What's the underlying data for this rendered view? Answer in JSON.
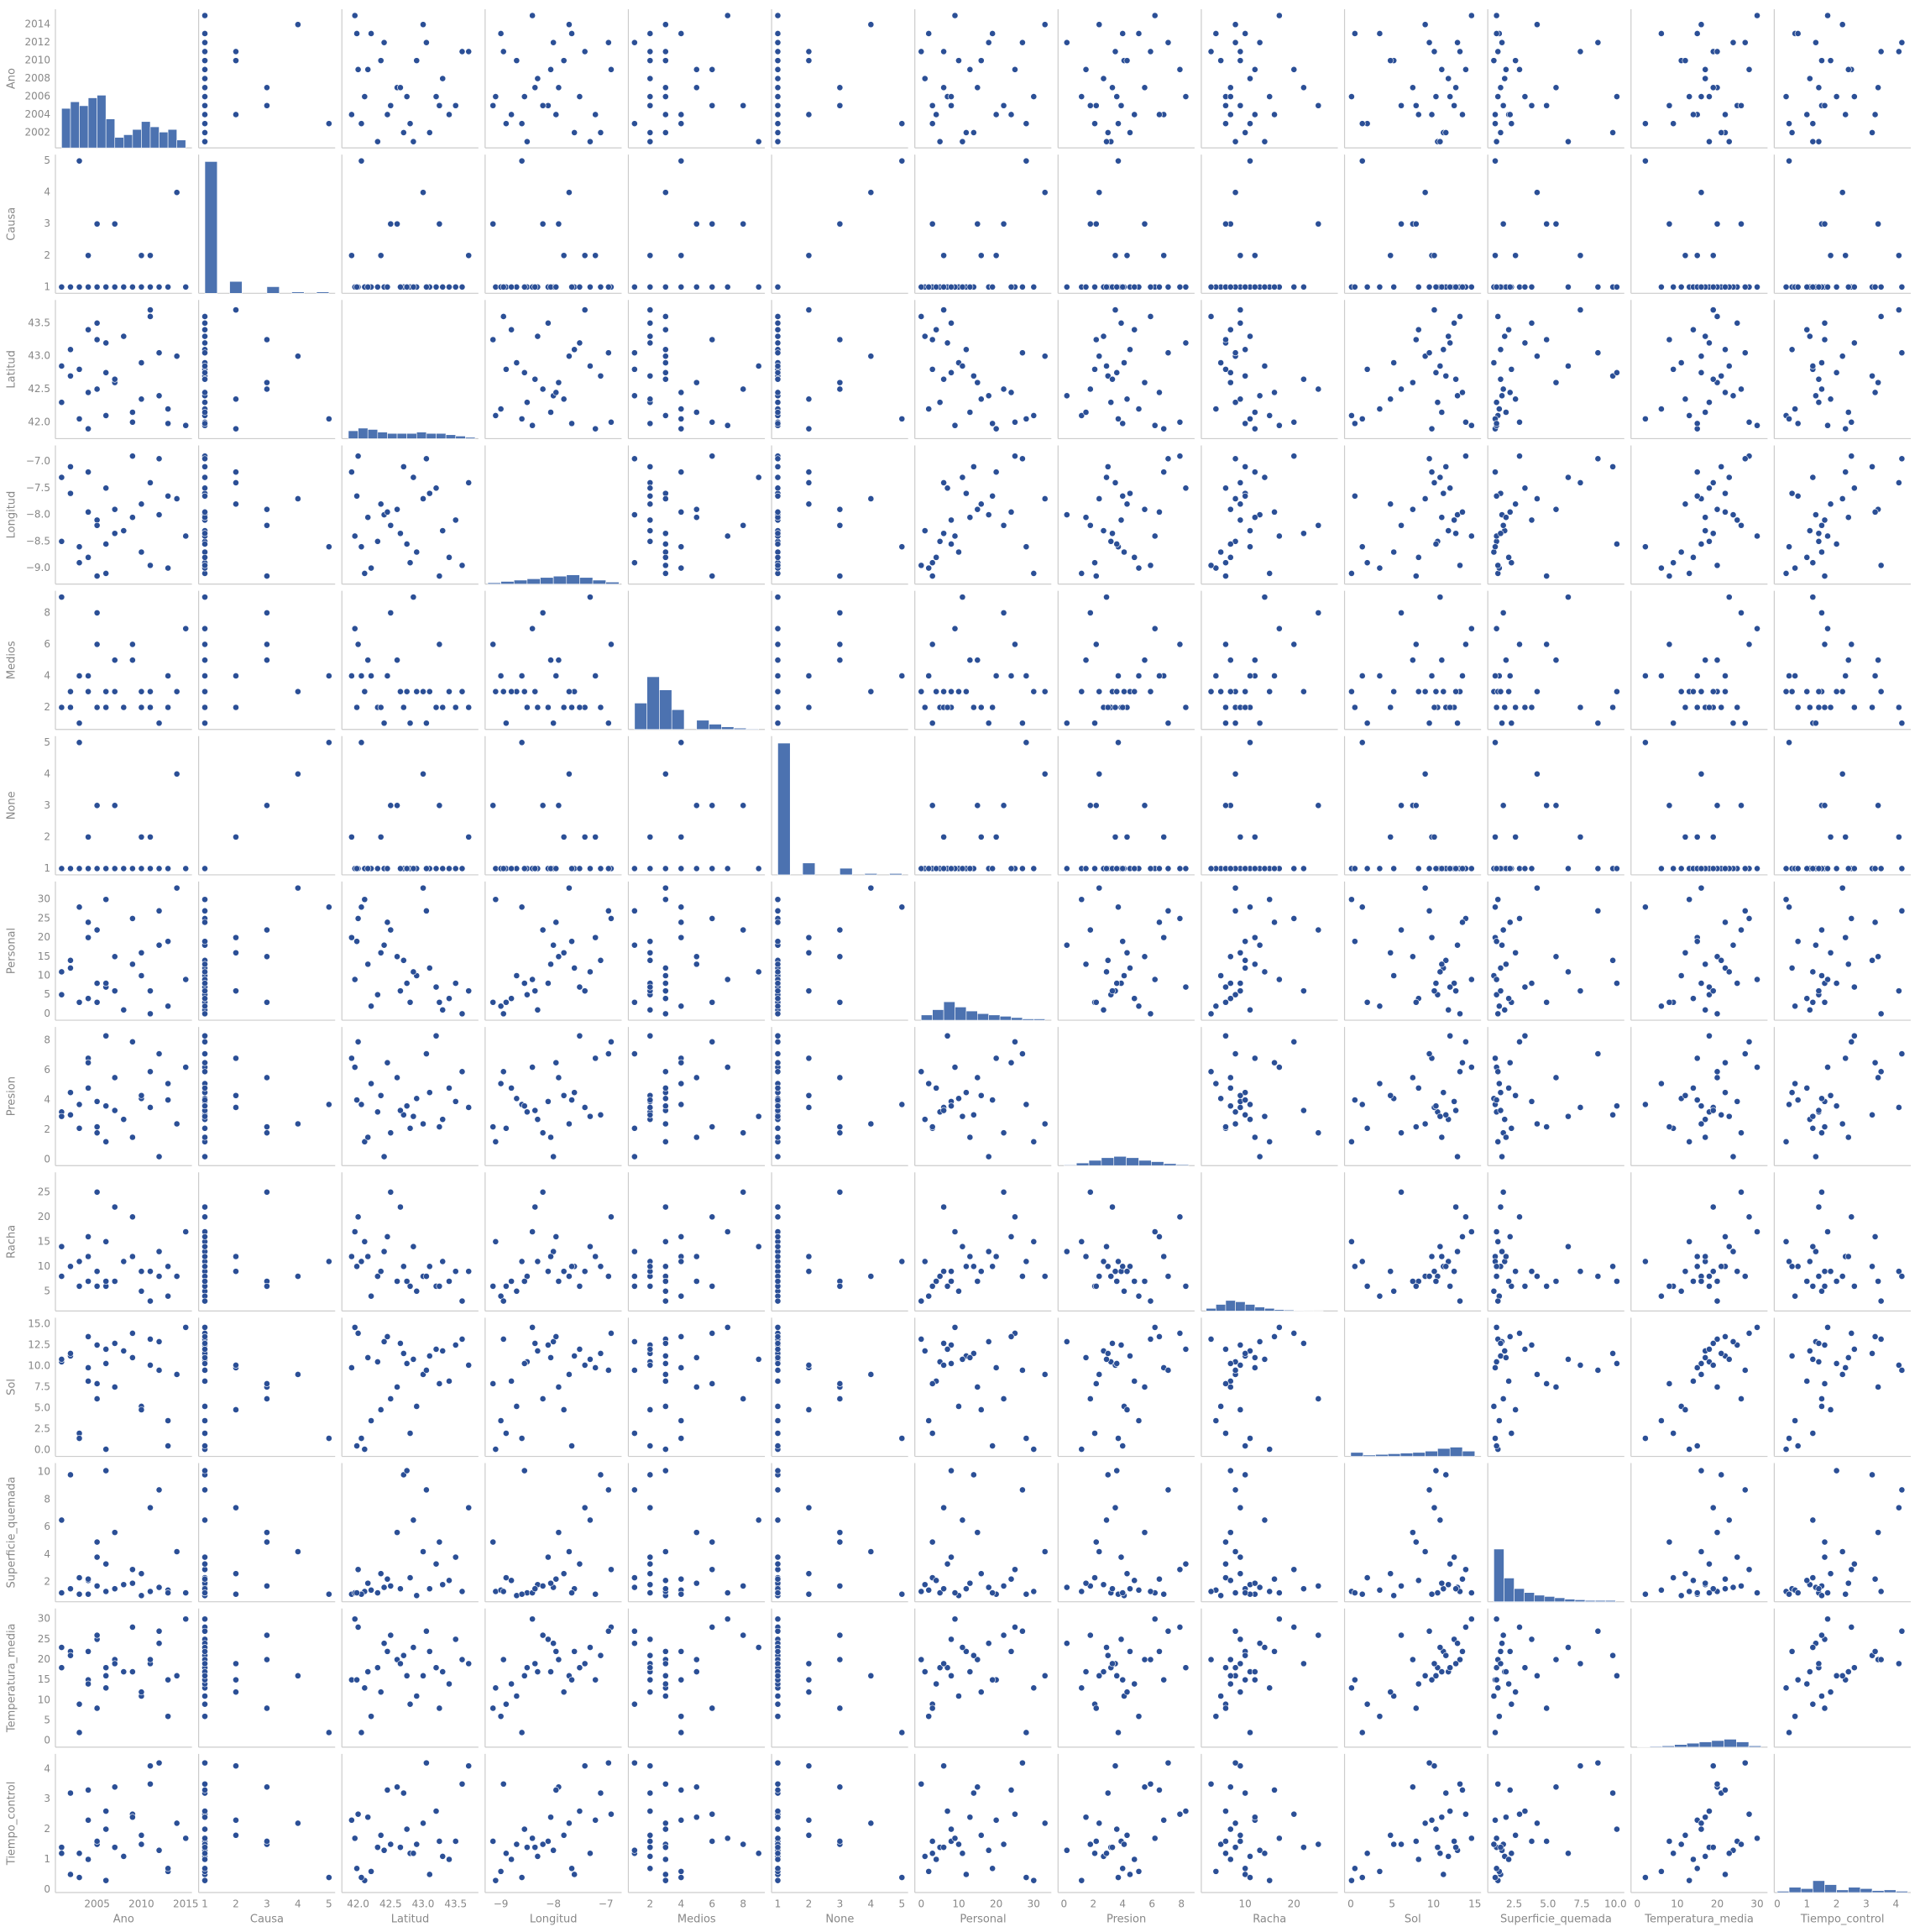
{
  "chart_data": {
    "type": "pairplot",
    "color": "#2b4f96",
    "hist_color": "#4c72b0",
    "variables": [
      {
        "name": "Ano",
        "lim": [
          2000.3,
          2015.7
        ],
        "xticks": [
          2005,
          2010,
          2015
        ],
        "yticks": [
          2002,
          2004,
          2006,
          2008,
          2010,
          2012,
          2014
        ],
        "values": [
          2001,
          2002,
          2003,
          2004,
          2005,
          2006,
          2007,
          2008,
          2009,
          2010,
          2011,
          2012,
          2013,
          2014,
          2015,
          2002,
          2004,
          2005,
          2006,
          2003,
          2001,
          2011,
          2010,
          2009,
          2012,
          2007,
          2013,
          2005,
          2004,
          2006
        ],
        "hist": {
          "bins": [
            2001,
            2002,
            2003,
            2004,
            2005,
            2006,
            2007,
            2008,
            2009,
            2010,
            2011,
            2012,
            2013,
            2014,
            2015
          ],
          "counts": [
            30,
            35,
            32,
            38,
            40,
            22,
            8,
            10,
            14,
            20,
            16,
            12,
            14,
            6
          ]
        }
      },
      {
        "name": "Causa",
        "lim": [
          0.8,
          5.2
        ],
        "xticks": [
          1,
          2,
          3,
          4,
          5
        ],
        "yticks": [
          1,
          2,
          3,
          4,
          5
        ],
        "values": [
          1,
          1,
          1,
          2,
          1,
          1,
          3,
          1,
          1,
          1,
          2,
          1,
          1,
          4,
          1,
          1,
          1,
          3,
          1,
          5,
          1,
          1,
          2,
          1,
          1,
          1,
          1,
          3,
          1,
          1
        ],
        "hist": {
          "bins": [
            1,
            1.4,
            1.8,
            2.2,
            2.6,
            3.0,
            3.4,
            3.8,
            4.2,
            4.6,
            5.0
          ],
          "counts": [
            100,
            0,
            9,
            0,
            0,
            5,
            0,
            1,
            0,
            1
          ]
        }
      },
      {
        "name": "Latitud",
        "lim": [
          41.75,
          43.85
        ],
        "xticks": [
          {
            "value": 42,
            "label": "42.0"
          },
          42.5,
          {
            "value": 43,
            "label": "43.0"
          },
          43.5
        ],
        "yticks": [
          {
            "value": 42,
            "label": "42.0"
          },
          42.5,
          {
            "value": 43,
            "label": "43.0"
          },
          43.5
        ],
        "values": [
          42.3,
          43.1,
          42.8,
          41.9,
          43.5,
          42.1,
          42.6,
          43.3,
          42.0,
          42.9,
          43.7,
          42.4,
          42.2,
          43.0,
          41.95,
          42.7,
          43.4,
          42.5,
          43.2,
          42.05,
          42.85,
          43.6,
          42.35,
          42.15,
          43.05,
          42.65,
          41.98,
          43.25,
          42.45,
          42.75
        ],
        "hist": {
          "bins": [
            41.85,
            42.0,
            42.15,
            42.3,
            42.45,
            42.6,
            42.75,
            42.9,
            43.05,
            43.2,
            43.35,
            43.5,
            43.65,
            43.8
          ],
          "counts": [
            6,
            8,
            7,
            5,
            4,
            4,
            4,
            5,
            4,
            4,
            3,
            2,
            1
          ]
        }
      },
      {
        "name": "Longitud",
        "lim": [
          -9.3,
          -6.7
        ],
        "xticks": [
          {
            "value": -9,
            "label": "−9"
          },
          {
            "value": -8,
            "label": "−8"
          },
          {
            "value": -7,
            "label": "−7"
          }
        ],
        "yticks": [
          {
            "value": -9,
            "label": "−9.0"
          },
          {
            "value": -8.5,
            "label": "−8.5"
          },
          {
            "value": -8,
            "label": "−8.0"
          },
          {
            "value": -7.5,
            "label": "−7.5"
          },
          {
            "value": -7,
            "label": "−7.0"
          }
        ],
        "values": [
          -8.5,
          -7.6,
          -8.9,
          -7.2,
          -8.1,
          -9.1,
          -7.9,
          -8.3,
          -6.9,
          -8.7,
          -7.4,
          -8.0,
          -9.0,
          -7.7,
          -8.4,
          -7.1,
          -8.8,
          -8.2,
          -7.5,
          -8.6,
          -7.3,
          -8.95,
          -7.8,
          -8.05,
          -6.95,
          -8.35,
          -7.65,
          -9.15,
          -7.95,
          -8.55
        ],
        "hist": {
          "bins": [
            -9.25,
            -9.0,
            -8.75,
            -8.5,
            -8.25,
            -8.0,
            -7.75,
            -7.5,
            -7.25,
            -7.0,
            -6.75
          ],
          "counts": [
            1,
            2,
            3,
            4,
            5,
            6,
            7,
            5,
            3,
            1.5
          ]
        }
      },
      {
        "name": "Medios",
        "lim": [
          0.6,
          9.4
        ],
        "xticks": [
          2,
          4,
          6,
          8
        ],
        "yticks": [
          2,
          4,
          6,
          8
        ],
        "values": [
          2,
          3,
          1,
          4,
          2,
          3,
          5,
          2,
          6,
          3,
          2,
          1,
          4,
          3,
          7,
          2,
          3,
          8,
          2,
          4,
          9,
          3,
          2,
          5,
          1,
          3,
          2,
          6,
          4,
          3
        ],
        "hist": {
          "bins": [
            1,
            1.8,
            2.6,
            3.4,
            4.2,
            5.0,
            5.8,
            6.6,
            7.4,
            8.2,
            9.0
          ],
          "counts": [
            20,
            40,
            30,
            15,
            0,
            7,
            4,
            2,
            1,
            0.5
          ]
        }
      },
      {
        "name": "None",
        "lim": [
          0.8,
          5.2
        ],
        "xticks": [
          1,
          2,
          3,
          4,
          5
        ],
        "yticks": [
          1,
          2,
          3,
          4,
          5
        ],
        "values": [
          1,
          1,
          1,
          2,
          1,
          1,
          3,
          1,
          1,
          1,
          2,
          1,
          1,
          4,
          1,
          1,
          1,
          3,
          1,
          5,
          1,
          1,
          2,
          1,
          1,
          1,
          1,
          3,
          1,
          1
        ],
        "hist": {
          "bins": [
            1,
            1.4,
            1.8,
            2.2,
            2.6,
            3.0,
            3.4,
            3.8,
            4.2,
            4.6,
            5.0
          ],
          "counts": [
            100,
            0,
            9,
            0,
            0,
            5,
            0,
            1,
            0,
            1
          ]
        }
      },
      {
        "name": "Personal",
        "lim": [
          -1.7,
          34.7
        ],
        "xticks": [
          0,
          10,
          20,
          30
        ],
        "yticks": [
          0,
          5,
          10,
          15,
          20,
          25,
          30
        ],
        "values": [
          5,
          12,
          3,
          20,
          8,
          30,
          15,
          1,
          25,
          10,
          6,
          18,
          2,
          33,
          9,
          14,
          4,
          22,
          7,
          28,
          11,
          0,
          16,
          13,
          27,
          6,
          19,
          3,
          24,
          8
        ],
        "hist": {
          "bins": [
            0,
            3,
            6,
            9,
            12,
            15,
            18,
            21,
            24,
            27,
            30,
            33
          ],
          "counts": [
            4,
            8,
            14,
            10,
            7,
            5,
            4,
            3,
            2,
            1,
            1
          ]
        }
      },
      {
        "name": "Presion",
        "lim": [
          -0.4,
          8.9
        ],
        "xticks": [
          0,
          2,
          4,
          6,
          8
        ],
        "yticks": [
          0,
          2,
          4,
          6,
          8
        ],
        "values": [
          3.2,
          4.5,
          2.1,
          6.8,
          3.9,
          1.2,
          5.5,
          2.7,
          7.9,
          4.1,
          3.5,
          0.2,
          5.1,
          2.4,
          6.2,
          3.0,
          4.8,
          1.8,
          8.3,
          3.7,
          2.9,
          5.9,
          4.3,
          1.5,
          7.1,
          3.3,
          4.0,
          2.2,
          6.5,
          3.6
        ],
        "hist": {
          "bins": [
            0,
            0.85,
            1.7,
            2.55,
            3.4,
            4.25,
            5.1,
            5.95,
            6.8,
            7.65,
            8.5
          ],
          "counts": [
            0.5,
            2,
            4,
            6,
            7,
            6,
            4,
            3,
            1.5,
            0.7
          ]
        }
      },
      {
        "name": "Racha",
        "lim": [
          1,
          29
        ],
        "xticks": [
          10,
          20
        ],
        "yticks": [
          5,
          10,
          15,
          20,
          25
        ],
        "values": [
          8,
          10,
          6,
          12,
          9,
          15,
          7,
          11,
          20,
          5,
          9,
          13,
          4,
          8,
          17,
          10,
          7,
          25,
          6,
          11,
          14,
          3,
          9,
          12,
          8,
          22,
          10,
          6,
          16,
          7
        ],
        "hist": {
          "bins": [
            2,
            4,
            6,
            8,
            10,
            12,
            14,
            16,
            18,
            20,
            22,
            24,
            26
          ],
          "counts": [
            2,
            5,
            8,
            7,
            5,
            3,
            2,
            1,
            0.7,
            0.4,
            0.3,
            0.2
          ]
        }
      },
      {
        "name": "Sol",
        "lim": [
          -0.75,
          15.75
        ],
        "xticks": [
          0,
          5,
          10,
          15
        ],
        "yticks": [
          {
            "value": 0,
            "label": "0.0"
          },
          2.5,
          {
            "value": 5,
            "label": "5.0"
          },
          7.5,
          {
            "value": 10,
            "label": "10.0"
          },
          12.5,
          {
            "value": 15,
            "label": "15.0"
          }
        ],
        "values": [
          10.5,
          11.2,
          2.0,
          9.8,
          12.5,
          0.1,
          7.5,
          11.8,
          13.9,
          5.2,
          10.1,
          12.9,
          3.5,
          9.0,
          14.6,
          11.5,
          8.2,
          6.1,
          12.0,
          1.4,
          10.8,
          13.2,
          4.8,
          11.0,
          9.5,
          12.7,
          0.5,
          7.9,
          13.5,
          10.3
        ],
        "hist": {
          "bins": [
            0,
            1.5,
            3,
            4.5,
            6,
            7.5,
            9,
            10.5,
            12,
            13.5,
            15
          ],
          "counts": [
            3,
            1,
            1.5,
            2,
            2.5,
            3,
            4,
            6,
            7,
            4
          ]
        }
      },
      {
        "name": "Superficie_quemada",
        "lim": [
          0.55,
          10.65
        ],
        "xticks": [
          2.5,
          {
            "value": 5,
            "label": "5.0"
          },
          7.5,
          {
            "value": 10,
            "label": "10.0"
          }
        ],
        "yticks": [
          2,
          4,
          6,
          8,
          10
        ],
        "values": [
          1.2,
          1.5,
          2.3,
          1.1,
          3.8,
          1.3,
          5.6,
          1.8,
          2.9,
          1.0,
          7.4,
          1.6,
          1.4,
          4.2,
          1.2,
          9.8,
          2.1,
          1.7,
          3.3,
          1.1,
          6.5,
          1.3,
          2.6,
          1.9,
          8.7,
          1.5,
          1.2,
          4.9,
          2.2,
          10.1
        ],
        "hist": {
          "bins": [
            1,
            1.75,
            2.5,
            3.25,
            4,
            4.75,
            5.5,
            6.25,
            7,
            7.75,
            8.5,
            9.25,
            10
          ],
          "counts": [
            40,
            18,
            10,
            7,
            5,
            4,
            3,
            2,
            1.5,
            1,
            1,
            1
          ]
        }
      },
      {
        "name": "Temperatura_media",
        "lim": [
          -1.6,
          32.6
        ],
        "xticks": [
          0,
          10,
          20,
          30
        ],
        "yticks": [
          0,
          5,
          10,
          15,
          20,
          25,
          30
        ],
        "values": [
          18,
          22,
          9,
          15,
          25,
          13,
          20,
          17,
          28,
          11,
          19,
          24,
          6,
          16,
          30,
          21,
          14,
          26,
          18,
          2,
          23,
          20,
          12,
          17,
          27,
          19,
          15,
          8,
          22,
          16
        ],
        "hist": {
          "bins": [
            0,
            3.1,
            6.2,
            9.3,
            12.4,
            15.5,
            18.6,
            21.7,
            24.8,
            27.9,
            31
          ],
          "counts": [
            0.3,
            0.6,
            1,
            2,
            3,
            4,
            5,
            6,
            4,
            1
          ]
        }
      },
      {
        "name": "Tiempo_control",
        "lim": [
          -0.1,
          4.5
        ],
        "xticks": [
          0,
          1,
          2,
          3,
          4
        ],
        "yticks": [
          0,
          1,
          2,
          3,
          4
        ],
        "values": [
          1.4,
          0.5,
          1.2,
          2.3,
          1.6,
          0.3,
          3.4,
          1.1,
          2.5,
          1.5,
          4.1,
          1.3,
          0.6,
          2.2,
          1.7,
          3.2,
          1.0,
          1.5,
          2.6,
          0.4,
          1.2,
          3.5,
          1.8,
          2.4,
          4.2,
          1.4,
          0.7,
          1.6,
          3.3,
          2.0
        ],
        "hist": {
          "bins": [
            0,
            0.4,
            0.8,
            1.2,
            1.6,
            2.0,
            2.4,
            2.8,
            3.2,
            3.6,
            4.0,
            4.4
          ],
          "counts": [
            1,
            4,
            3,
            9,
            6,
            2,
            4,
            3,
            1.5,
            2,
            1
          ]
        }
      }
    ]
  }
}
